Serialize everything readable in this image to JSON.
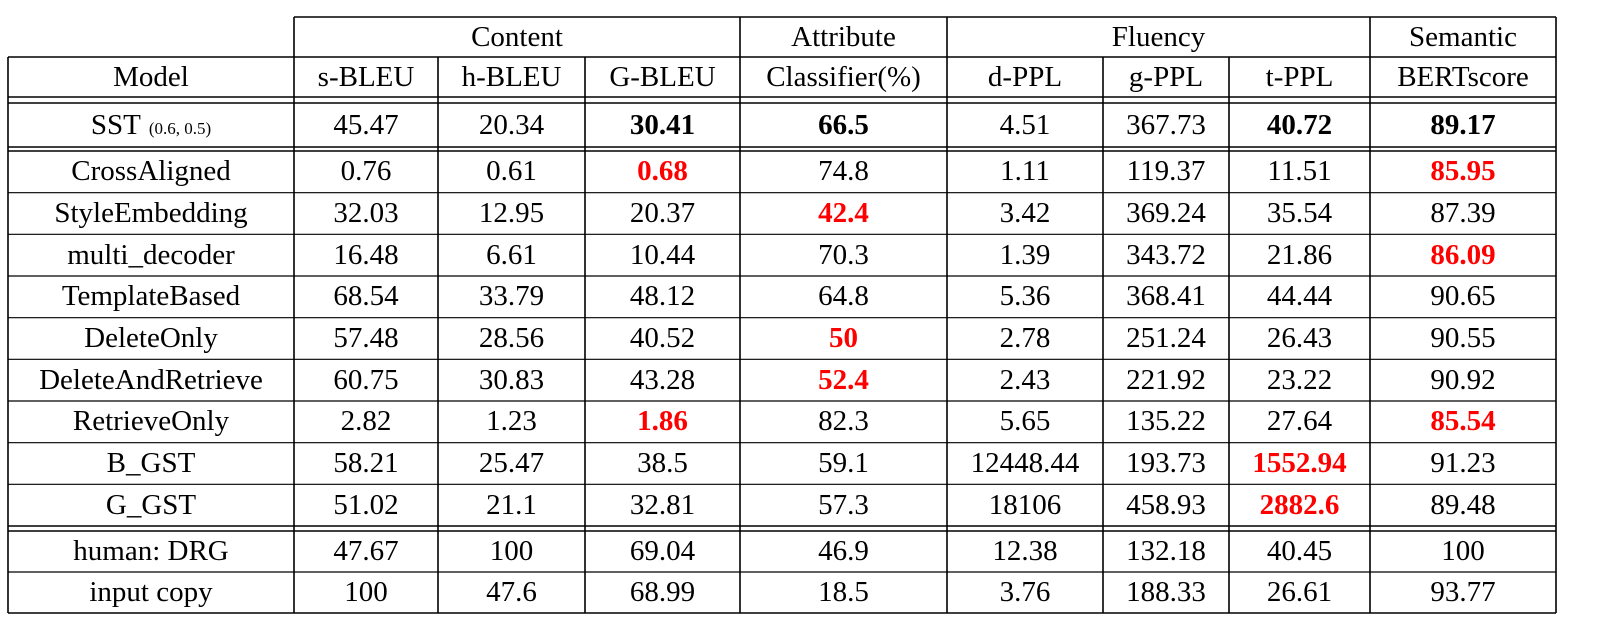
{
  "group_headers": [
    {
      "label": "Content"
    },
    {
      "label": "Attribute"
    },
    {
      "label": "Fluency"
    },
    {
      "label": "Semantic"
    }
  ],
  "column_headers": [
    "Model",
    "s-BLEU",
    "h-BLEU",
    "G-BLEU",
    "Classifier(%)",
    "d-PPL",
    "g-PPL",
    "t-PPL",
    "BERTscore"
  ],
  "rows": [
    {
      "model": "SST",
      "model_sub": "(0.6, 0.5)",
      "values": [
        "45.47",
        "20.34",
        "30.41",
        "66.5",
        "4.51",
        "367.73",
        "40.72",
        "89.17"
      ],
      "bold": [
        2,
        3,
        6,
        7
      ],
      "red": []
    },
    {
      "model": "CrossAligned",
      "values": [
        "0.76",
        "0.61",
        "0.68",
        "74.8",
        "1.11",
        "119.37",
        "11.51",
        "85.95"
      ],
      "bold": [],
      "red": [
        2,
        7
      ]
    },
    {
      "model": "StyleEmbedding",
      "values": [
        "32.03",
        "12.95",
        "20.37",
        "42.4",
        "3.42",
        "369.24",
        "35.54",
        "87.39"
      ],
      "bold": [],
      "red": [
        3
      ]
    },
    {
      "model": "multi_decoder",
      "values": [
        "16.48",
        "6.61",
        "10.44",
        "70.3",
        "1.39",
        "343.72",
        "21.86",
        "86.09"
      ],
      "bold": [],
      "red": [
        7
      ]
    },
    {
      "model": "TemplateBased",
      "values": [
        "68.54",
        "33.79",
        "48.12",
        "64.8",
        "5.36",
        "368.41",
        "44.44",
        "90.65"
      ],
      "bold": [],
      "red": []
    },
    {
      "model": "DeleteOnly",
      "values": [
        "57.48",
        "28.56",
        "40.52",
        "50",
        "2.78",
        "251.24",
        "26.43",
        "90.55"
      ],
      "bold": [],
      "red": [
        3
      ]
    },
    {
      "model": "DeleteAndRetrieve",
      "values": [
        "60.75",
        "30.83",
        "43.28",
        "52.4",
        "2.43",
        "221.92",
        "23.22",
        "90.92"
      ],
      "bold": [],
      "red": [
        3
      ]
    },
    {
      "model": "RetrieveOnly",
      "values": [
        "2.82",
        "1.23",
        "1.86",
        "82.3",
        "5.65",
        "135.22",
        "27.64",
        "85.54"
      ],
      "bold": [],
      "red": [
        2,
        7
      ]
    },
    {
      "model": "B_GST",
      "values": [
        "58.21",
        "25.47",
        "38.5",
        "59.1",
        "12448.44",
        "193.73",
        "1552.94",
        "91.23"
      ],
      "bold": [],
      "red": [
        6
      ]
    },
    {
      "model": "G_GST",
      "values": [
        "51.02",
        "21.1",
        "32.81",
        "57.3",
        "18106",
        "458.93",
        "2882.6",
        "89.48"
      ],
      "bold": [],
      "red": [
        6
      ]
    },
    {
      "model": "human: DRG",
      "values": [
        "47.67",
        "100",
        "69.04",
        "46.9",
        "12.38",
        "132.18",
        "40.45",
        "100"
      ],
      "bold": [],
      "red": []
    },
    {
      "model": "input copy",
      "values": [
        "100",
        "47.6",
        "68.99",
        "18.5",
        "3.76",
        "188.33",
        "26.61",
        "93.77"
      ],
      "bold": [],
      "red": []
    }
  ],
  "colors": {
    "highlight": "#ff0000",
    "text": "#000000"
  }
}
